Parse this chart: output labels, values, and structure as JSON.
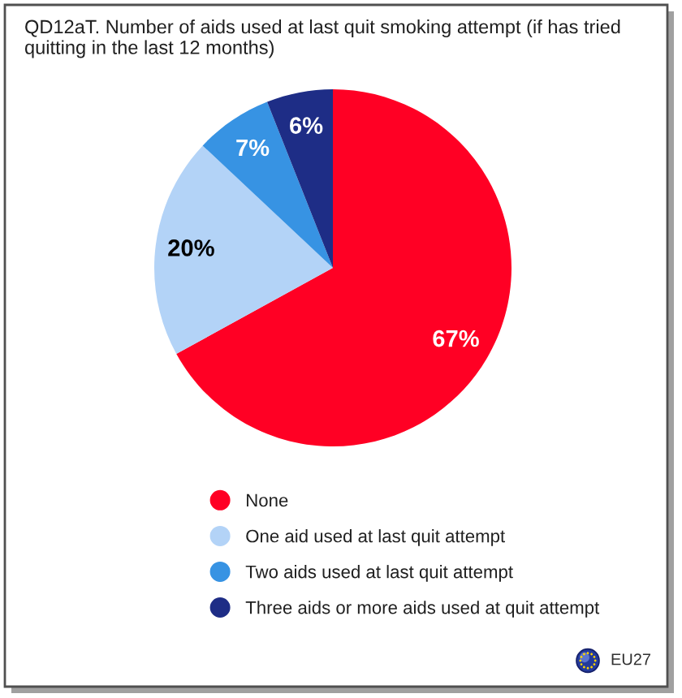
{
  "chart_data": {
    "type": "pie",
    "title": "QD12aT. Number of aids used at last quit smoking attempt (if has tried quitting in the last 12 months)",
    "categories": [
      "None",
      "One aid used at last quit attempt",
      "Two aids used at last quit attempt",
      "Three aids or more aids used at quit attempt"
    ],
    "values": [
      67,
      20,
      7,
      6
    ],
    "colors": [
      "#ff0024",
      "#b3d3f7",
      "#3793e3",
      "#1e2d86"
    ],
    "value_labels": [
      "67%",
      "20%",
      "7%",
      "6%"
    ],
    "legend": "bottom",
    "annotations": [
      "EU27"
    ]
  }
}
